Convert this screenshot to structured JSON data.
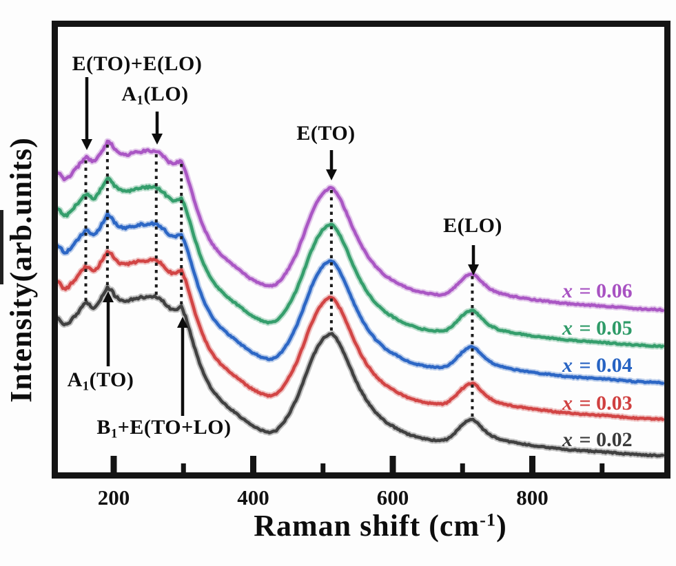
{
  "chart_data": {
    "type": "line",
    "title": "",
    "xlabel": "Raman shift (cm-1)",
    "xlabel_parts": [
      {
        "t": "Raman shift (cm"
      },
      {
        "t": "-1",
        "sup": true
      },
      {
        "t": ")"
      }
    ],
    "ylabel": "Intensity(arb.units)",
    "x_unit": "cm-1",
    "xlim": [
      110,
      990
    ],
    "x_ticks_major": [
      {
        "value": 200,
        "label": "200"
      },
      {
        "value": 400,
        "label": "400"
      },
      {
        "value": 600,
        "label": "600"
      },
      {
        "value": 800,
        "label": "800"
      }
    ],
    "x_ticks_minor": [
      300,
      500,
      700,
      900
    ],
    "grid": false,
    "legend_position": "right-inside",
    "frame_color": "#141414",
    "series": [
      {
        "id": "x0.02",
        "label": "x = 0.02",
        "x_var": "x",
        "value": "0.02",
        "color": "#3b3b3b",
        "offset_units": 25
      },
      {
        "id": "x0.03",
        "label": "x = 0.03",
        "x_var": "x",
        "value": "0.03",
        "color": "#d04040",
        "offset_units": 78
      },
      {
        "id": "x0.04",
        "label": "x = 0.04",
        "x_var": "x",
        "value": "0.04",
        "color": "#2763c3",
        "offset_units": 131
      },
      {
        "id": "x0.05",
        "label": "x = 0.05",
        "x_var": "x",
        "value": "0.05",
        "color": "#2f9b68",
        "offset_units": 184
      },
      {
        "id": "x0.06",
        "label": "x = 0.06",
        "x_var": "x",
        "value": "0.06",
        "color": "#a852c2",
        "offset_units": 237
      }
    ],
    "base_profile_cm1_units": [
      [
        110,
        196
      ],
      [
        116,
        200
      ],
      [
        122,
        198
      ],
      [
        128,
        190
      ],
      [
        134,
        191
      ],
      [
        142,
        200
      ],
      [
        150,
        210
      ],
      [
        158,
        220
      ],
      [
        162,
        222
      ],
      [
        167,
        217
      ],
      [
        172,
        215
      ],
      [
        178,
        222
      ],
      [
        185,
        234
      ],
      [
        191,
        244
      ],
      [
        196,
        242
      ],
      [
        202,
        232
      ],
      [
        208,
        227
      ],
      [
        214,
        225
      ],
      [
        222,
        226
      ],
      [
        230,
        228
      ],
      [
        240,
        230
      ],
      [
        250,
        231
      ],
      [
        258,
        231
      ],
      [
        264,
        229
      ],
      [
        272,
        223
      ],
      [
        280,
        214
      ],
      [
        286,
        212
      ],
      [
        292,
        214
      ],
      [
        297,
        216
      ],
      [
        302,
        205
      ],
      [
        308,
        185
      ],
      [
        315,
        160
      ],
      [
        322,
        138
      ],
      [
        330,
        117
      ],
      [
        340,
        97
      ],
      [
        352,
        82
      ],
      [
        365,
        70
      ],
      [
        380,
        58
      ],
      [
        395,
        46
      ],
      [
        410,
        38
      ],
      [
        422,
        34
      ],
      [
        432,
        36
      ],
      [
        442,
        46
      ],
      [
        452,
        62
      ],
      [
        462,
        82
      ],
      [
        472,
        108
      ],
      [
        482,
        136
      ],
      [
        492,
        158
      ],
      [
        500,
        170
      ],
      [
        506,
        175
      ],
      [
        512,
        178
      ],
      [
        518,
        172
      ],
      [
        526,
        158
      ],
      [
        534,
        140
      ],
      [
        544,
        116
      ],
      [
        554,
        95
      ],
      [
        564,
        78
      ],
      [
        576,
        62
      ],
      [
        590,
        49
      ],
      [
        605,
        40
      ],
      [
        620,
        32
      ],
      [
        638,
        26
      ],
      [
        655,
        23
      ],
      [
        668,
        22
      ],
      [
        678,
        24
      ],
      [
        688,
        32
      ],
      [
        698,
        43
      ],
      [
        706,
        50
      ],
      [
        714,
        53
      ],
      [
        720,
        49
      ],
      [
        728,
        40
      ],
      [
        738,
        31
      ],
      [
        750,
        25
      ],
      [
        765,
        21
      ],
      [
        782,
        18
      ],
      [
        800,
        15
      ],
      [
        825,
        12
      ],
      [
        850,
        9
      ],
      [
        880,
        7
      ],
      [
        910,
        5
      ],
      [
        945,
        2
      ],
      [
        988,
        0
      ]
    ],
    "guide_lines_cm1": [
      160,
      191,
      261,
      297,
      512,
      714
    ],
    "peak_annotations": [
      {
        "id": "E(TO)+E(LO)",
        "cm1": 160,
        "parts": [
          {
            "t": "E(TO)+E(LO)"
          }
        ]
      },
      {
        "id": "A1(LO)",
        "cm1": 261,
        "parts": [
          {
            "t": "A"
          },
          {
            "t": "1",
            "sub": true
          },
          {
            "t": "(LO)"
          }
        ]
      },
      {
        "id": "E(TO)",
        "cm1": 512,
        "parts": [
          {
            "t": "E(TO)"
          }
        ]
      },
      {
        "id": "E(LO)",
        "cm1": 714,
        "parts": [
          {
            "t": "E(LO)"
          }
        ]
      },
      {
        "id": "A1(TO)",
        "cm1": 191,
        "parts": [
          {
            "t": "A"
          },
          {
            "t": "1",
            "sub": true
          },
          {
            "t": "(TO)"
          }
        ]
      },
      {
        "id": "B1+E(TO+LO)",
        "cm1": 297,
        "parts": [
          {
            "t": "B"
          },
          {
            "t": "1",
            "sub": true
          },
          {
            "t": "+E(TO+LO)"
          }
        ]
      }
    ],
    "peak_wavenumbers_cm1": {
      "E(TO)+E(LO)": 160,
      "A1(TO)": 191,
      "A1(LO)": 261,
      "B1+E(TO+LO)": 297,
      "E(TO)": 512,
      "E(LO)": 714
    }
  }
}
